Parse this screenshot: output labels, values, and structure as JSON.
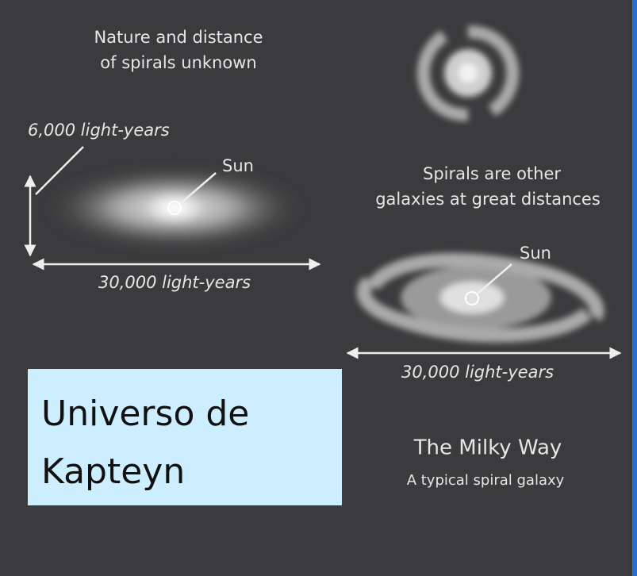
{
  "left_panel": {
    "caption_lines": [
      "Nature and distance",
      "of spirals unknown"
    ],
    "thickness_label": "6,000 light-years",
    "sun_label": "Sun",
    "width_label": "30,000 light-years"
  },
  "right_panel": {
    "caption_lines": [
      "Spirals are other",
      "galaxies at great distances"
    ],
    "sun_label": "Sun",
    "width_label": "30,000 light-years",
    "title": "The Milky Way",
    "subtitle": "A typical spiral galaxy"
  },
  "label_box": {
    "lines": [
      "Universo de",
      "Kapteyn"
    ]
  }
}
